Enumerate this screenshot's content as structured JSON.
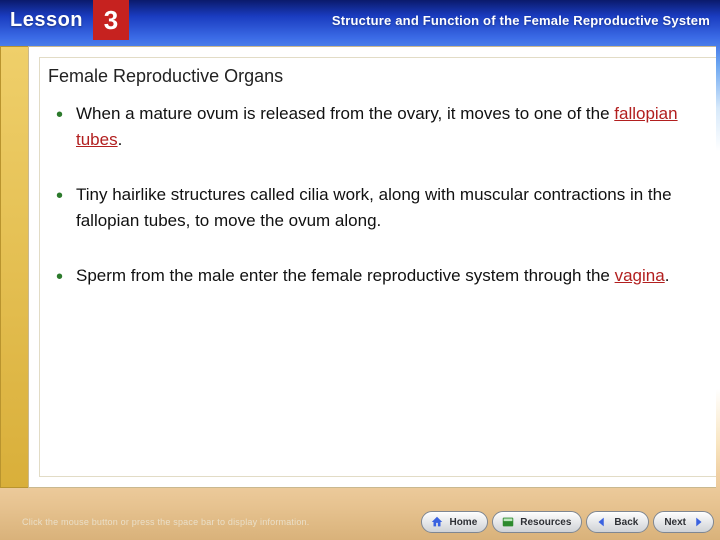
{
  "header": {
    "lesson_word": "Lesson",
    "lesson_number": "3",
    "chapter_title": "Structure and Function of the Female Reproductive System",
    "lesson_num_bg": "#c6221f",
    "top_gradient_color": "#1a3cc0"
  },
  "panel": {
    "section_title": "Female Reproductive Organs",
    "bullets": [
      {
        "runs": [
          {
            "t": "When a mature ovum is released from the ovary, it moves to one of the "
          },
          {
            "t": "fallopian tubes",
            "term": true
          },
          {
            "t": "."
          }
        ]
      },
      {
        "runs": [
          {
            "t": "Tiny hairlike structures called cilia work, along with muscular contractions in the fallopian tubes, to move the ovum along."
          }
        ]
      },
      {
        "runs": [
          {
            "t": "Sperm from the male enter the female reproductive system through the "
          },
          {
            "t": "vagina",
            "term": true
          },
          {
            "t": "."
          }
        ]
      }
    ],
    "bullet_color": "#2c7a2c",
    "term_color": "#b21f1f"
  },
  "footer": {
    "hint": "Click the mouse button or press the space bar to display information.",
    "buttons": {
      "home": "Home",
      "resources": "Resources",
      "back": "Back",
      "next": "Next"
    }
  },
  "colors": {
    "gold_side": "#efcf6a",
    "panel_border": "#c9b88f"
  }
}
